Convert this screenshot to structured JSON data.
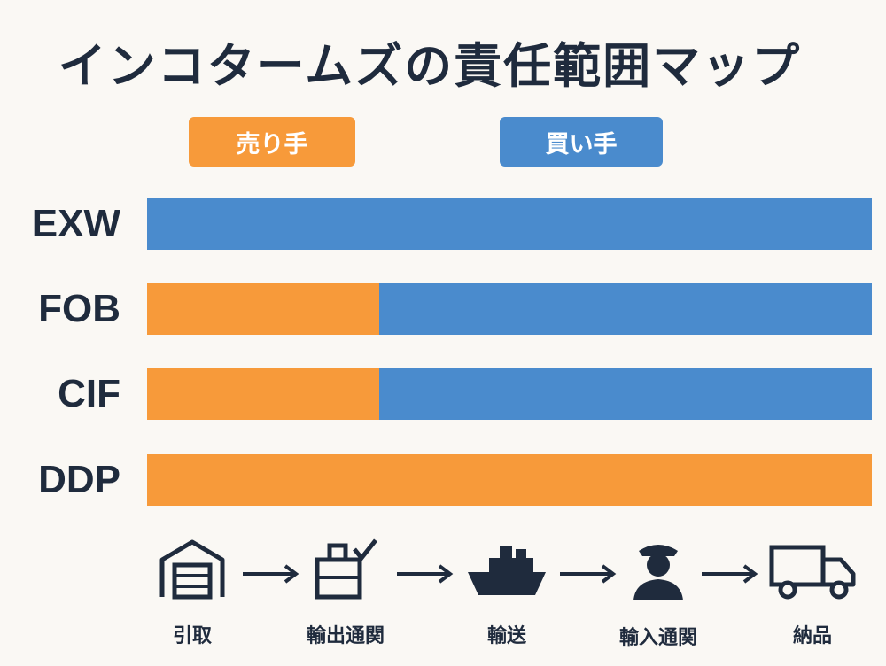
{
  "title": "インコタームズの責任範囲マップ",
  "legend": {
    "seller": "売り手",
    "buyer": "買い手"
  },
  "colors": {
    "seller": "#f79a3a",
    "buyer": "#4a8bcd",
    "text": "#1f2b3d"
  },
  "terms": [
    {
      "label": "EXW",
      "seller_share": 0.0
    },
    {
      "label": "FOB",
      "seller_share": 0.32
    },
    {
      "label": "CIF",
      "seller_share": 0.32
    },
    {
      "label": "DDP",
      "seller_share": 1.0
    }
  ],
  "steps": [
    {
      "label": "引取",
      "icon": "warehouse-icon"
    },
    {
      "label": "輸出通関",
      "icon": "export-clearance-icon"
    },
    {
      "label": "輸送",
      "icon": "ship-icon"
    },
    {
      "label": "輸入通関",
      "icon": "customs-officer-icon"
    },
    {
      "label": "納品",
      "icon": "truck-icon"
    }
  ]
}
